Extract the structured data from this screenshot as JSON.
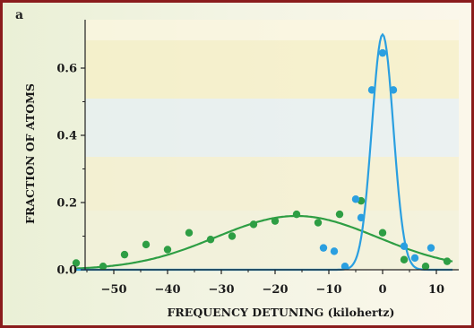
{
  "panel_label": "a",
  "colors": {
    "frame": "#8a1c1c",
    "green_series": "#2e9e44",
    "blue_series": "#2a9fe0",
    "axis": "#222222",
    "band_yellow": "#f8f0c8",
    "band_blue": "#e3eef6"
  },
  "chart_data": {
    "type": "scatter",
    "title": "",
    "xlabel": "FREQUENCY DETUNING (kilohertz)",
    "ylabel": "FRACTION OF ATOMS",
    "xlim": [
      -58,
      14
    ],
    "ylim": [
      0,
      0.72
    ],
    "x_ticks": [
      -50,
      -40,
      -30,
      -20,
      -10,
      0,
      10
    ],
    "x_tick_labels": [
      "−50",
      "−40",
      "−30",
      "−20",
      "−10",
      "0",
      "10"
    ],
    "y_ticks": [
      0.0,
      0.2,
      0.4,
      0.6
    ],
    "y_tick_labels": [
      "0.0",
      "0.2",
      "0.4",
      "0.6"
    ],
    "grid": false,
    "series": [
      {
        "color": "#2e9e44",
        "points": [
          [
            -57,
            0.02
          ],
          [
            -52,
            0.01
          ],
          [
            -48,
            0.045
          ],
          [
            -44,
            0.075
          ],
          [
            -40,
            0.06
          ],
          [
            -36,
            0.11
          ],
          [
            -32,
            0.09
          ],
          [
            -28,
            0.1
          ],
          [
            -24,
            0.135
          ],
          [
            -20,
            0.145
          ],
          [
            -16,
            0.165
          ],
          [
            -12,
            0.14
          ],
          [
            -8,
            0.165
          ],
          [
            -4,
            0.205
          ],
          [
            0,
            0.11
          ],
          [
            4,
            0.03
          ],
          [
            8,
            0.01
          ],
          [
            12,
            0.025
          ]
        ],
        "fit": {
          "shape": "gaussian",
          "amplitude": 0.16,
          "center": -16,
          "sigma": 15
        }
      },
      {
        "color": "#2a9fe0",
        "points": [
          [
            -11,
            0.065
          ],
          [
            -9,
            0.055
          ],
          [
            -7,
            0.01
          ],
          [
            -5,
            0.21
          ],
          [
            -4,
            0.155
          ],
          [
            -2,
            0.535
          ],
          [
            0,
            0.645
          ],
          [
            2,
            0.535
          ],
          [
            4,
            0.07
          ],
          [
            6,
            0.035
          ],
          [
            9,
            0.065
          ]
        ],
        "fit": {
          "shape": "gaussian",
          "amplitude": 0.7,
          "center": 0,
          "sigma": 2.0
        }
      }
    ]
  }
}
